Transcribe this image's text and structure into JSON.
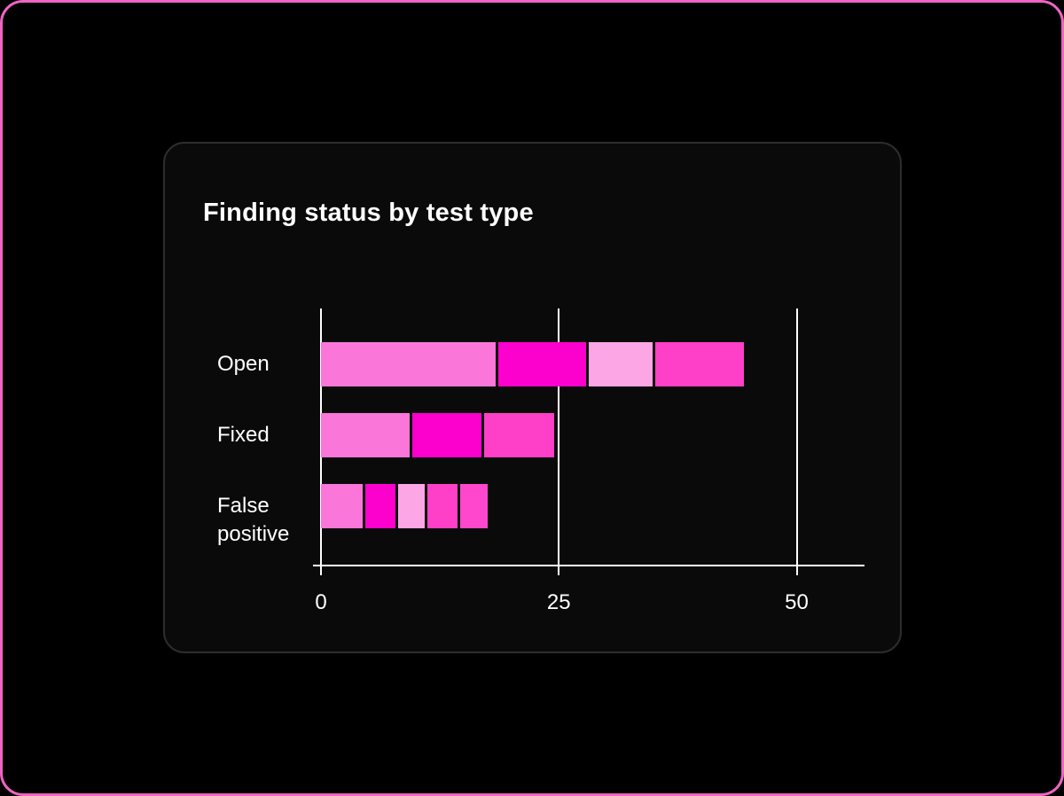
{
  "frame": {
    "border_color": "#f064c3",
    "background": "#000000"
  },
  "card": {
    "title": "Finding status by test type",
    "background": "#0a0a0a",
    "border_color": "#2d2d2d"
  },
  "chart_data": {
    "type": "bar",
    "orientation": "horizontal",
    "stacked": true,
    "title": "Finding status by test type",
    "categories": [
      "Open",
      "Fixed",
      "False positive"
    ],
    "x_ticks": [
      "0",
      "25",
      "50"
    ],
    "x_tick_values": [
      0,
      25,
      50
    ],
    "xlim": [
      0,
      57
    ],
    "grid": "vertical gridlines at ticks",
    "legend": "none",
    "axis_color": "#ffffff",
    "text_color": "#ffffff",
    "bars": [
      {
        "category": "Open",
        "total": 44.5,
        "segments": [
          {
            "value": 18.5,
            "color": "#fb76d9"
          },
          {
            "value": 9.5,
            "color": "#fc00cd"
          },
          {
            "value": 7,
            "color": "#fca6e5"
          },
          {
            "value": 9.5,
            "color": "#fe3fc7"
          }
        ]
      },
      {
        "category": "Fixed",
        "total": 24.5,
        "segments": [
          {
            "value": 9.5,
            "color": "#fb76d9"
          },
          {
            "value": 7.5,
            "color": "#fc00cd"
          },
          {
            "value": 7.5,
            "color": "#fe3fc7"
          }
        ]
      },
      {
        "category": "False positive",
        "total": 17.5,
        "segments": [
          {
            "value": 4.5,
            "color": "#fb76d9"
          },
          {
            "value": 3.5,
            "color": "#fc00cd"
          },
          {
            "value": 3,
            "color": "#fca6e5"
          },
          {
            "value": 3.5,
            "color": "#fe3fc7"
          },
          {
            "value": 3,
            "color": "#fe47cc"
          }
        ]
      }
    ]
  }
}
